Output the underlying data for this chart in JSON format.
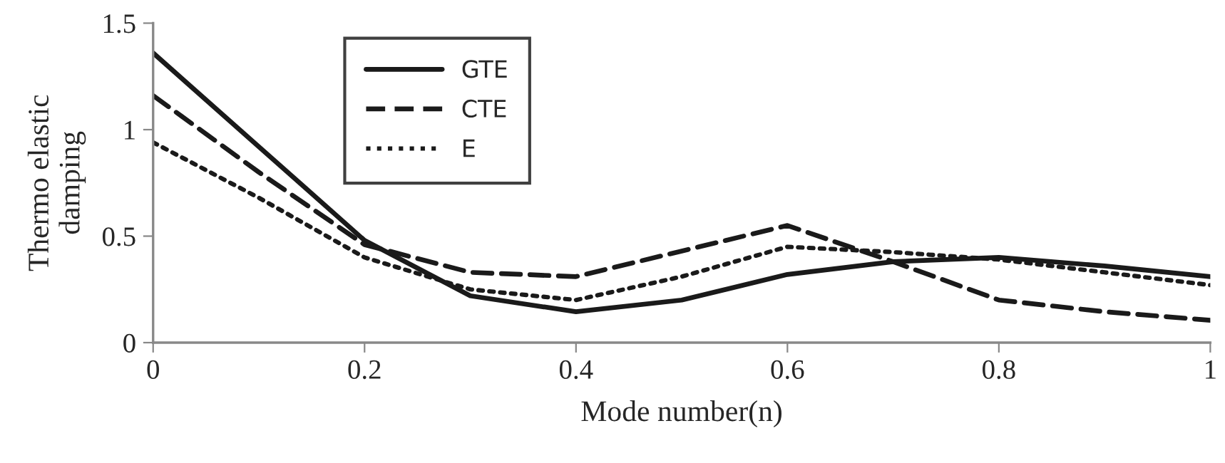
{
  "chart_data": {
    "type": "line",
    "xlabel": "Mode number(n)",
    "ylabel": "Thermo elastic\ndamping",
    "x": [
      0,
      0.1,
      0.2,
      0.3,
      0.4,
      0.5,
      0.6,
      0.7,
      0.8,
      0.9,
      1
    ],
    "xlim": [
      0,
      1
    ],
    "xticks": [
      0,
      0.2,
      0.4,
      0.6,
      0.8,
      1
    ],
    "ylim": [
      0,
      1.5
    ],
    "yticks": [
      0,
      0.5,
      1,
      1.5
    ],
    "grid": false,
    "legend": "top left",
    "marker": "none",
    "series": [
      {
        "name": "GTE",
        "color": "#1a1a1a",
        "line_style": "solid",
        "values": [
          1.36,
          0.92,
          0.48,
          0.22,
          0.145,
          0.2,
          0.32,
          0.38,
          0.4,
          0.36,
          0.31
        ]
      },
      {
        "name": "CTE",
        "color": "#1a1a1a",
        "line_style": "dashed",
        "values": [
          1.16,
          0.8,
          0.46,
          0.33,
          0.31,
          0.43,
          0.55,
          0.38,
          0.2,
          0.145,
          0.105
        ]
      },
      {
        "name": "E",
        "color": "#1a1a1a",
        "line_style": "dotted",
        "values": [
          0.94,
          0.68,
          0.4,
          0.25,
          0.2,
          0.31,
          0.45,
          0.425,
          0.39,
          0.33,
          0.27
        ]
      }
    ]
  }
}
